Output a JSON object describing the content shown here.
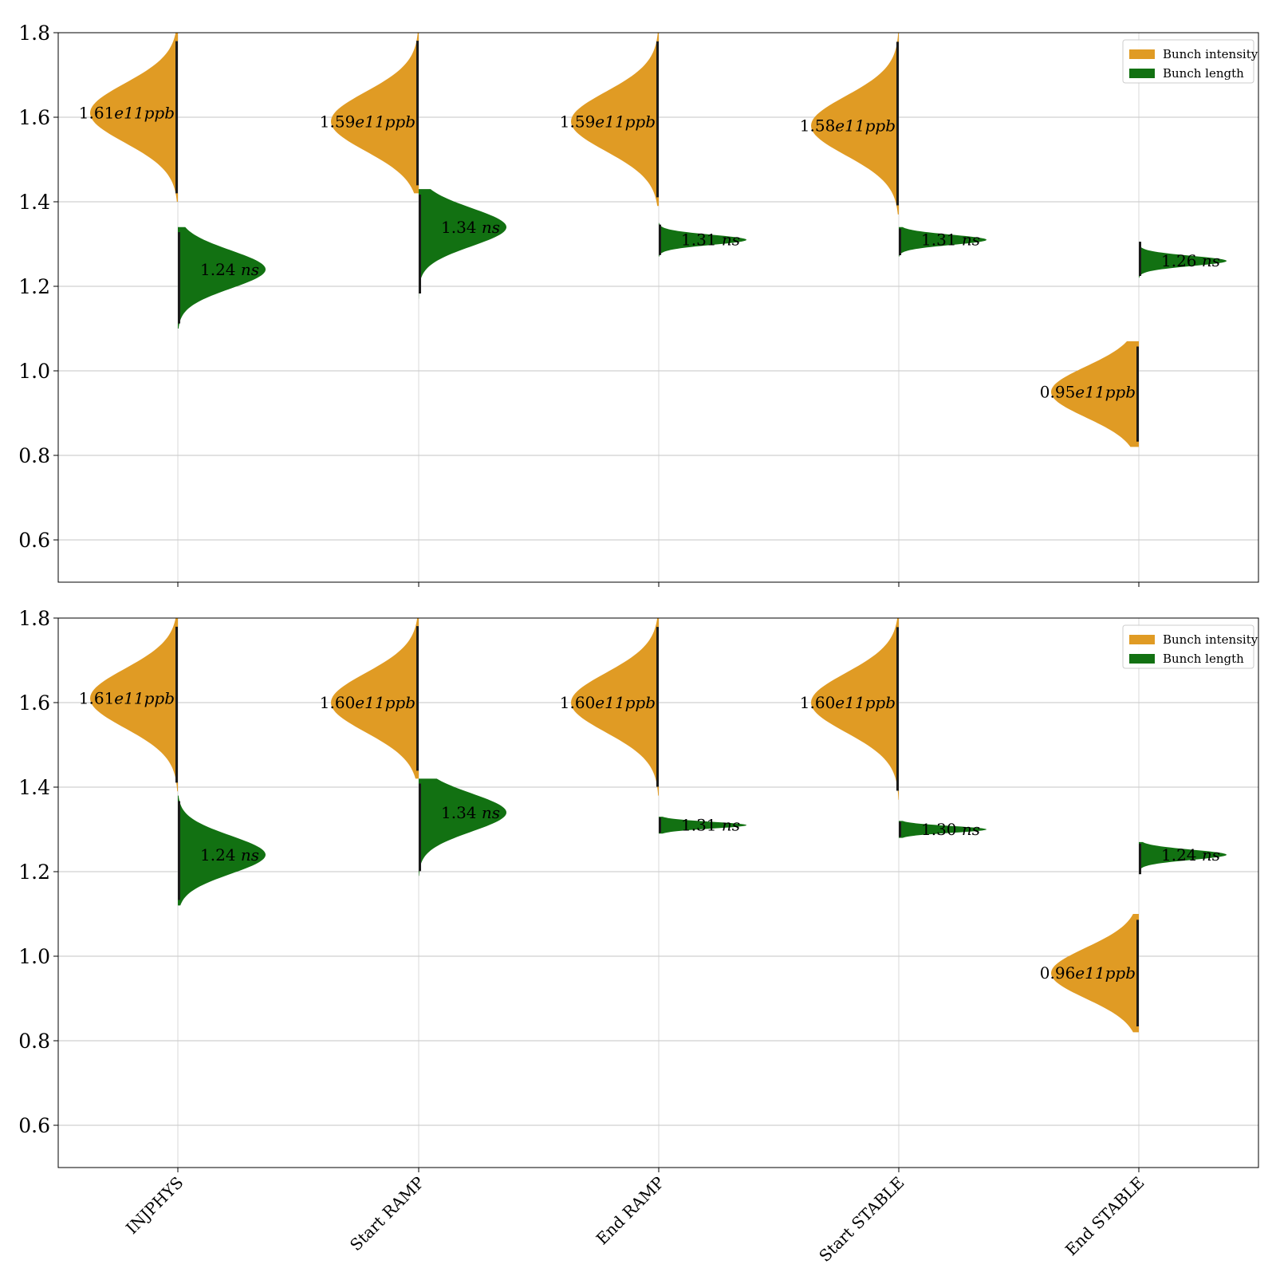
{
  "chart_data": [
    {
      "type": "violin",
      "panel": "top",
      "categories": [
        "INJPHYS",
        "Start RAMP",
        "End RAMP",
        "Start STABLE",
        "End STABLE"
      ],
      "ylim": [
        0.5,
        1.8
      ],
      "yticks": [
        0.6,
        0.8,
        1.0,
        1.2,
        1.4,
        1.6,
        1.8
      ],
      "ytick_labels": [
        "0.6",
        "0.8",
        "1.0",
        "1.2",
        "1.4",
        "1.6",
        "1.8"
      ],
      "grid": true,
      "legend": {
        "position": "top-right",
        "entries": [
          {
            "label": "Bunch intensity",
            "color": "#e09b24"
          },
          {
            "label": "Bunch length",
            "color": "#127112"
          }
        ]
      },
      "series": [
        {
          "name": "Bunch intensity",
          "side": "left",
          "color": "#e09b24",
          "medians": [
            1.61,
            1.59,
            1.59,
            1.58,
            0.95
          ],
          "spread": [
            0.07,
            0.07,
            0.07,
            0.07,
            0.06
          ],
          "range_min": [
            1.4,
            1.42,
            1.39,
            1.37,
            0.82
          ],
          "range_max": [
            1.8,
            1.8,
            1.8,
            1.8,
            1.07
          ],
          "annotations": [
            {
              "number": "1.61",
              "unit": "e11ppb"
            },
            {
              "number": "1.59",
              "unit": "e11ppb"
            },
            {
              "number": "1.59",
              "unit": "e11ppb"
            },
            {
              "number": "1.58",
              "unit": "e11ppb"
            },
            {
              "number": "0.95",
              "unit": "e11ppb"
            }
          ]
        },
        {
          "name": "Bunch length",
          "side": "right",
          "color": "#127112",
          "medians": [
            1.24,
            1.34,
            1.31,
            1.31,
            1.26
          ],
          "spread": [
            0.045,
            0.045,
            0.012,
            0.012,
            0.012
          ],
          "range_min": [
            1.1,
            1.17,
            1.27,
            1.27,
            1.22
          ],
          "range_max": [
            1.34,
            1.43,
            1.35,
            1.34,
            1.31
          ],
          "annotations": [
            {
              "number": "1.24",
              "unit": "ns"
            },
            {
              "number": "1.34",
              "unit": "ns"
            },
            {
              "number": "1.31",
              "unit": "ns"
            },
            {
              "number": "1.31",
              "unit": "ns"
            },
            {
              "number": "1.26",
              "unit": "ns"
            }
          ]
        }
      ]
    },
    {
      "type": "violin",
      "panel": "bottom",
      "categories": [
        "INJPHYS",
        "Start RAMP",
        "End RAMP",
        "Start STABLE",
        "End STABLE"
      ],
      "ylim": [
        0.5,
        1.8
      ],
      "yticks": [
        0.6,
        0.8,
        1.0,
        1.2,
        1.4,
        1.6,
        1.8
      ],
      "ytick_labels": [
        "0.6",
        "0.8",
        "1.0",
        "1.2",
        "1.4",
        "1.6",
        "1.8"
      ],
      "grid": true,
      "legend": {
        "position": "top-right",
        "entries": [
          {
            "label": "Bunch intensity",
            "color": "#e09b24"
          },
          {
            "label": "Bunch length",
            "color": "#127112"
          }
        ]
      },
      "series": [
        {
          "name": "Bunch intensity",
          "side": "left",
          "color": "#e09b24",
          "medians": [
            1.61,
            1.6,
            1.6,
            1.6,
            0.96
          ],
          "spread": [
            0.07,
            0.07,
            0.07,
            0.07,
            0.06
          ],
          "range_min": [
            1.39,
            1.42,
            1.38,
            1.37,
            0.82
          ],
          "range_max": [
            1.8,
            1.8,
            1.8,
            1.8,
            1.1
          ],
          "annotations": [
            {
              "number": "1.61",
              "unit": "e11ppb"
            },
            {
              "number": "1.60",
              "unit": "e11ppb"
            },
            {
              "number": "1.60",
              "unit": "e11ppb"
            },
            {
              "number": "1.60",
              "unit": "e11ppb"
            },
            {
              "number": "0.96",
              "unit": "e11ppb"
            }
          ]
        },
        {
          "name": "Bunch length",
          "side": "right",
          "color": "#127112",
          "medians": [
            1.24,
            1.34,
            1.31,
            1.3,
            1.24
          ],
          "spread": [
            0.045,
            0.045,
            0.008,
            0.008,
            0.012
          ],
          "range_min": [
            1.12,
            1.19,
            1.29,
            1.28,
            1.19
          ],
          "range_max": [
            1.38,
            1.42,
            1.33,
            1.32,
            1.27
          ],
          "annotations": [
            {
              "number": "1.24",
              "unit": "ns"
            },
            {
              "number": "1.34",
              "unit": "ns"
            },
            {
              "number": "1.31",
              "unit": "ns"
            },
            {
              "number": "1.30",
              "unit": "ns"
            },
            {
              "number": "1.24",
              "unit": "ns"
            }
          ]
        }
      ]
    }
  ]
}
